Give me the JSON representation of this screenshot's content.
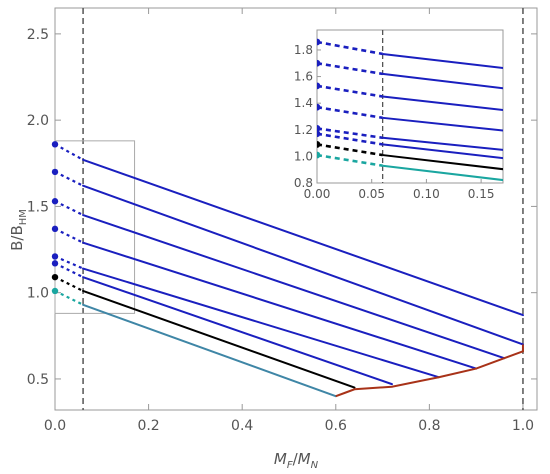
{
  "chart_data": {
    "type": "line",
    "xlabel": {
      "main": "M",
      "sub": "F",
      "sep": "/",
      "main2": "M",
      "sub2": "N"
    },
    "ylabel": {
      "main": "B/B",
      "sub": "HM"
    },
    "xlim": [
      0,
      1.03
    ],
    "ylim": [
      0.32,
      2.65
    ],
    "x_ticks": [
      0.0,
      0.2,
      0.4,
      0.6,
      0.8,
      1.0
    ],
    "x_tick_labels": [
      "0.0",
      "0.2",
      "0.4",
      "0.6",
      "0.8",
      "1.0"
    ],
    "y_ticks": [
      0.5,
      1.0,
      1.5,
      2.0,
      2.5
    ],
    "y_tick_labels": [
      "0.5",
      "1.0",
      "1.5",
      "2.0",
      "2.5"
    ],
    "grid": false,
    "vertical_dashed_lines_x": [
      0.06,
      1.0
    ],
    "colors": {
      "blue": "#1a1fbf",
      "black": "#000000",
      "teal": "#1aa6a0",
      "teal_solid": "#3f86a6",
      "red": "#a83218",
      "axis": "#999999",
      "inset_box": "#aaaaaa"
    },
    "series": [
      {
        "color": "blue",
        "dotted": [
          [
            0,
            1.86
          ],
          [
            0.06,
            1.77
          ]
        ],
        "solid": [
          [
            0.06,
            1.77
          ],
          [
            1.0,
            0.87
          ]
        ]
      },
      {
        "color": "blue",
        "dotted": [
          [
            0,
            1.7
          ],
          [
            0.06,
            1.62
          ]
        ],
        "solid": [
          [
            0.06,
            1.62
          ],
          [
            1.0,
            0.7
          ]
        ]
      },
      {
        "color": "blue",
        "dotted": [
          [
            0,
            1.53
          ],
          [
            0.06,
            1.45
          ]
        ],
        "solid": [
          [
            0.06,
            1.45
          ],
          [
            0.96,
            0.62
          ]
        ]
      },
      {
        "color": "blue",
        "dotted": [
          [
            0,
            1.37
          ],
          [
            0.06,
            1.29
          ]
        ],
        "solid": [
          [
            0.06,
            1.29
          ],
          [
            0.9,
            0.56
          ]
        ]
      },
      {
        "color": "blue",
        "dotted": [
          [
            0,
            1.21
          ],
          [
            0.06,
            1.14
          ]
        ],
        "solid": [
          [
            0.06,
            1.14
          ],
          [
            0.82,
            0.51
          ]
        ]
      },
      {
        "color": "blue",
        "dotted": [
          [
            0,
            1.17
          ],
          [
            0.06,
            1.09
          ]
        ],
        "solid": [
          [
            0.06,
            1.09
          ],
          [
            0.72,
            0.47
          ]
        ]
      },
      {
        "color": "black",
        "dotted": [
          [
            0,
            1.09
          ],
          [
            0.06,
            1.01
          ]
        ],
        "solid": [
          [
            0.06,
            1.01
          ],
          [
            0.64,
            0.45
          ]
        ]
      },
      {
        "color": "teal",
        "dotted": [
          [
            0,
            1.01
          ],
          [
            0.06,
            0.93
          ]
        ],
        "solid": [
          [
            0.06,
            0.93
          ],
          [
            0.6,
            0.4
          ]
        ]
      }
    ],
    "boundary_curve": [
      [
        0.6,
        0.4
      ],
      [
        0.62,
        0.42
      ],
      [
        0.64,
        0.44
      ],
      [
        0.72,
        0.455
      ],
      [
        0.82,
        0.51
      ],
      [
        0.9,
        0.56
      ],
      [
        0.96,
        0.62
      ],
      [
        1.0,
        0.66
      ],
      [
        1.0,
        0.7
      ]
    ],
    "inset": {
      "xlim": [
        0,
        0.17
      ],
      "ylim": [
        0.8,
        1.95
      ],
      "x_ticks": [
        0.0,
        0.05,
        0.1,
        0.15
      ],
      "x_tick_labels": [
        "0.00",
        "0.05",
        "0.10",
        "0.15"
      ],
      "y_ticks": [
        0.8,
        1.0,
        1.2,
        1.4,
        1.6,
        1.8
      ],
      "y_tick_labels": [
        "0.8",
        "1.0",
        "1.2",
        "1.4",
        "1.6",
        "1.8"
      ],
      "vertical_dashed_line_x": 0.06
    },
    "zoom_box": {
      "x": [
        0,
        0.17
      ],
      "y": [
        0.88,
        1.88
      ]
    }
  }
}
